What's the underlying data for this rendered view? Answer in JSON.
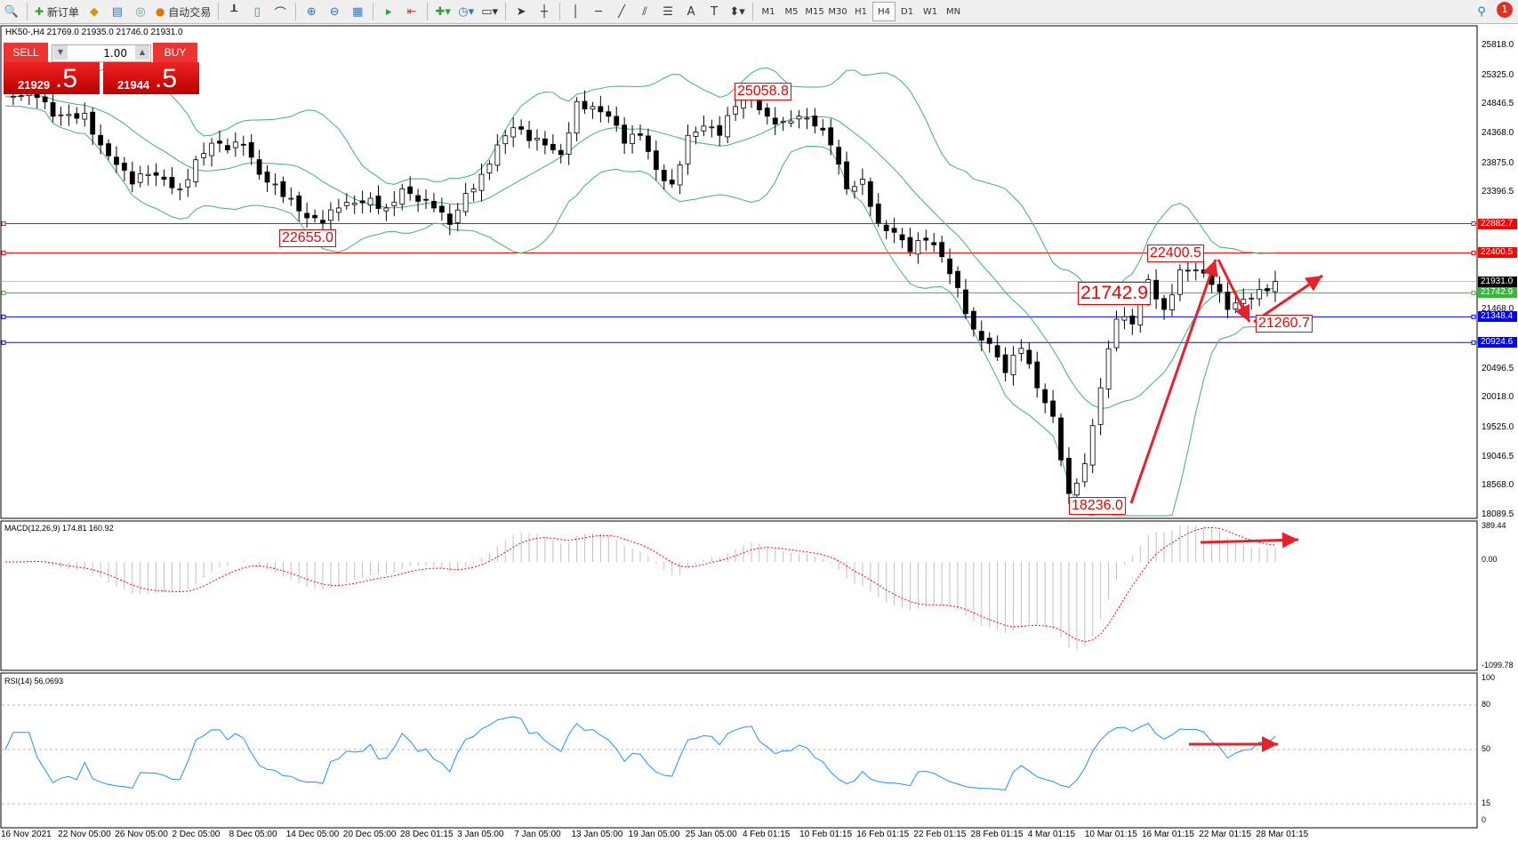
{
  "toolbar": {
    "new_order": "新订单",
    "auto_trading": "自动交易",
    "timeframes": [
      "M1",
      "M5",
      "M15",
      "M30",
      "H1",
      "H4",
      "D1",
      "W1",
      "MN"
    ],
    "active_timeframe": "H4",
    "notification_count": "1"
  },
  "symbol_info": "HK50-,H4  21769.0 21935.0 21746.0 21931.0",
  "trade_panel": {
    "sell": "SELL",
    "buy": "BUY",
    "lot": "1.00",
    "sell_price_main": "21929",
    "sell_price_big": ".5",
    "buy_price_main": "21944",
    "buy_price_big": ".5"
  },
  "price_axis": {
    "max": 25818.0,
    "min": 18089.5,
    "ticks": [
      "25818.0",
      "25325.0",
      "24846.5",
      "24368.0",
      "23875.0",
      "23396.5",
      "21468.0",
      "20496.5",
      "20018.0",
      "19525.0",
      "19046.5",
      "18568.0",
      "18089.5"
    ]
  },
  "levels": [
    {
      "value": "22882.7",
      "color": "#ff0000"
    },
    {
      "value": "22400.5",
      "color": "#ff0000"
    },
    {
      "value": "21931.0",
      "color": "#000000",
      "line": "#c0c0c0"
    },
    {
      "value": "21742.9",
      "color": "#33bb33"
    },
    {
      "value": "21348.4",
      "color": "#0000ff"
    },
    {
      "value": "20924.6",
      "color": "#0000ff"
    }
  ],
  "annotations": [
    "25058.8",
    "22655.0",
    "22400.5",
    "21742.9",
    "21260.7",
    "18236.0"
  ],
  "closes": [
    24970,
    24990,
    24960,
    24651,
    24680,
    24700,
    24178,
    23856,
    23535,
    23694,
    23614,
    23455,
    23934,
    24206,
    24096,
    24178,
    23694,
    23535,
    23300,
    22978,
    22898,
    23140,
    23220,
    23300,
    23140,
    23455,
    23250,
    23140,
    22870,
    23380,
    23694,
    24178,
    24461,
    24250,
    24178,
    24020,
    24891,
    24810,
    24651,
    24206,
    24336,
    23775,
    23535,
    24336,
    24490,
    24336,
    24810,
    24970,
    24651,
    24570,
    24651,
    24490,
    24178,
    23455,
    23614,
    22898,
    22740,
    22421,
    22610,
    22340,
    21830,
    21147,
    20910,
    20430,
    20830,
    20180,
    19711,
    18440,
    18930,
    20180,
    21310,
    21230,
    21960,
    21470,
    22120,
    22120,
    21880,
    21470,
    21640,
    21800,
    21931
  ],
  "macd": {
    "label": "MACD(12,26,9) 174.81 160.92",
    "max": "389.44",
    "zero": "0.00",
    "min": "-1099.78",
    "colors": {
      "hist": "#c0c0c0",
      "signal": "#ff0000"
    }
  },
  "rsi": {
    "label": "RSI(14) 56.0693",
    "levels": [
      "100",
      "80",
      "50",
      "15",
      "0"
    ],
    "color": "#1e90ff"
  },
  "dates": [
    "16 Nov 2021",
    "22 Nov 05:00",
    "26 Nov 05:00",
    "2 Dec 05:00",
    "8 Dec 05:00",
    "14 Dec 05:00",
    "20 Dec 05:00",
    "28 Dec 01:15",
    "3 Jan 05:00",
    "7 Jan 05:00",
    "13 Jan 05:00",
    "19 Jan 05:00",
    "25 Jan 05:00",
    "4 Feb 01:15",
    "10 Feb 01:15",
    "16 Feb 01:15",
    "22 Feb 01:15",
    "28 Feb 01:15",
    "4 Mar 01:15",
    "10 Mar 01:15",
    "16 Mar 01:15",
    "22 Mar 01:15",
    "28 Mar 01:15"
  ],
  "colors": {
    "bands": "#3cb371",
    "arrows": "#e8202a"
  }
}
